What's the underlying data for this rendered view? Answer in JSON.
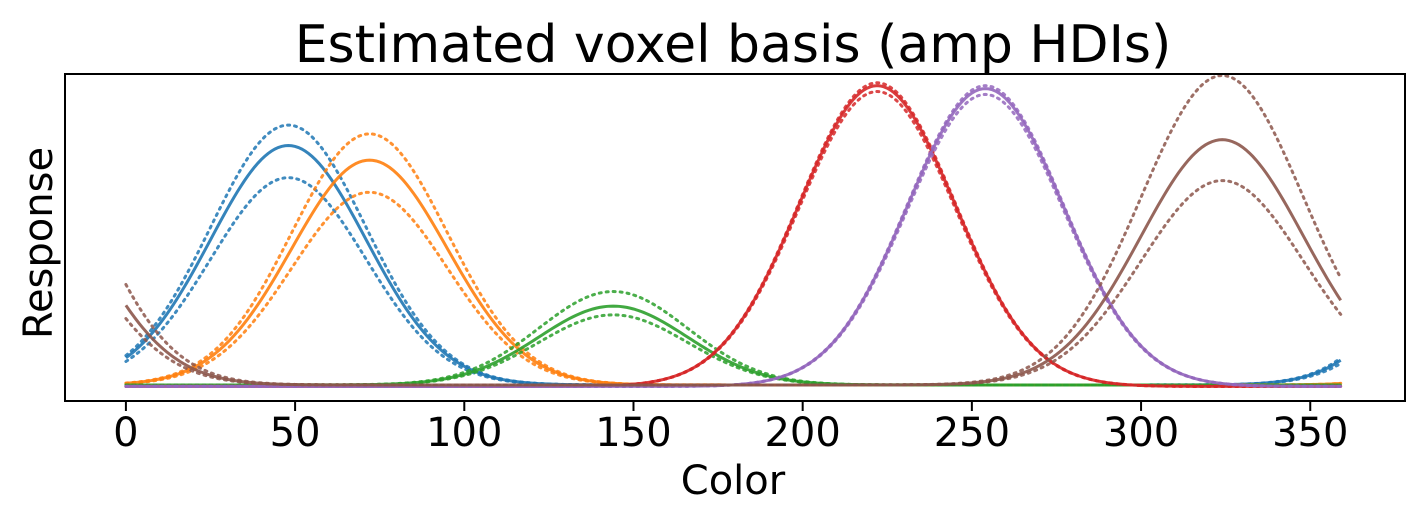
{
  "chart_data": {
    "type": "line",
    "title": "Estimated voxel basis (amp HDIs)",
    "xlabel": "Color",
    "ylabel": "Response",
    "xlim": [
      -18,
      378
    ],
    "ylim": [
      -0.05,
      1.07
    ],
    "xticks": [
      0,
      50,
      100,
      150,
      200,
      250,
      300,
      350
    ],
    "yticks_shown": false,
    "grid": false,
    "legend": "none",
    "series": [
      {
        "color": "#1f77b4",
        "center": 48,
        "sigma": 23,
        "amp": 0.82,
        "amp_low": 0.71,
        "amp_high": 0.89,
        "baseline": 0.005
      },
      {
        "color": "#ff7f0e",
        "center": 72,
        "sigma": 23,
        "amp": 0.77,
        "amp_low": 0.66,
        "amp_high": 0.86,
        "baseline": 0.005
      },
      {
        "color": "#2ca02c",
        "center": 144,
        "sigma": 22,
        "amp": 0.27,
        "amp_low": 0.24,
        "amp_high": 0.32,
        "baseline": 0.005
      },
      {
        "color": "#d62728",
        "center": 222,
        "sigma": 23,
        "amp": 1.03,
        "amp_low": 1.01,
        "amp_high": 1.04,
        "baseline": 0.0
      },
      {
        "color": "#9467bd",
        "center": 254,
        "sigma": 23,
        "amp": 1.02,
        "amp_low": 1.0,
        "amp_high": 1.03,
        "baseline": 0.0
      },
      {
        "color": "#8c564b",
        "center": 324,
        "sigma": 24,
        "amp": 0.84,
        "amp_low": 0.7,
        "amp_high": 1.06,
        "baseline": 0.005
      }
    ]
  }
}
